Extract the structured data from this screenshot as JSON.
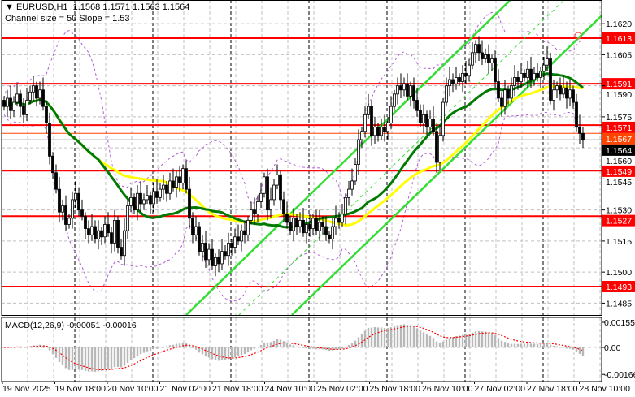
{
  "header": {
    "symbol_line": "EURUSD,H1  1.1568 1.1571 1.1563 1.1564",
    "channel_line": "Channel size = 50 Slope = 1.53",
    "menu_icon": "triangle-down-icon"
  },
  "macd": {
    "title": "MACD(12,26,9) -0.00051 -0.00016",
    "ticks": [
      "0.00155",
      "0.00",
      "-0.00166"
    ],
    "tick_values": [
      0.00155,
      0,
      -0.00166
    ]
  },
  "chart_data": {
    "type": "candlestick",
    "symbol": "EURUSD",
    "timeframe": "H1",
    "ylim": [
      1.1485,
      1.1625
    ],
    "y_ticks": [
      "1.1620",
      "1.1605",
      "1.1590",
      "1.1575",
      "1.1560",
      "1.1545",
      "1.1530",
      "1.1515",
      "1.1500",
      "1.1485"
    ],
    "x_tick_labels": [
      "19 Nov 2025",
      "19 Nov 18:00",
      "20 Nov 10:00",
      "21 Nov 02:00",
      "21 Nov 18:00",
      "24 Nov 10:00",
      "25 Nov 02:00",
      "25 Nov 18:00",
      "26 Nov 10:00",
      "27 Nov 02:00",
      "27 Nov 18:00",
      "28 Nov 10:00"
    ],
    "grid": true,
    "closes": [
      1.158,
      1.1584,
      1.1578,
      1.1582,
      1.1586,
      1.158,
      1.1576,
      1.1583,
      1.1587,
      1.159,
      1.1584,
      1.1588,
      1.158,
      1.1572,
      1.1556,
      1.1548,
      1.154,
      1.1529,
      1.1532,
      1.1523,
      1.1526,
      1.1535,
      1.1538,
      1.153,
      1.1527,
      1.1521,
      1.1518,
      1.1522,
      1.1516,
      1.152,
      1.1517,
      1.1523,
      1.1519,
      1.1514,
      1.1525,
      1.1512,
      1.1508,
      1.152,
      1.1532,
      1.1536,
      1.153,
      1.1538,
      1.1533,
      1.1535,
      1.1537,
      1.1533,
      1.1539,
      1.1536,
      1.154,
      1.1542,
      1.1538,
      1.1544,
      1.1541,
      1.1546,
      1.1543,
      1.155,
      1.154,
      1.1526,
      1.1518,
      1.1522,
      1.151,
      1.1514,
      1.1506,
      1.1511,
      1.1503,
      1.1507,
      1.1504,
      1.151,
      1.1508,
      1.1514,
      1.1512,
      1.1517,
      1.1515,
      1.152,
      1.1518,
      1.1525,
      1.153,
      1.1528,
      1.1534,
      1.1538,
      1.1546,
      1.153,
      1.1535,
      1.1542,
      1.1547,
      1.1535,
      1.1528,
      1.1524,
      1.152,
      1.1526,
      1.1522,
      1.1525,
      1.1519,
      1.1523,
      1.1521,
      1.1526,
      1.152,
      1.1524,
      1.1522,
      1.1518,
      1.1516,
      1.1522,
      1.1526,
      1.1524,
      1.1528,
      1.1536,
      1.154,
      1.1544,
      1.1552,
      1.1564,
      1.1568,
      1.1576,
      1.158,
      1.1566,
      1.157,
      1.1566,
      1.157,
      1.1568,
      1.1572,
      1.158,
      1.1586,
      1.159,
      1.1588,
      1.1591,
      1.1585,
      1.159,
      1.1583,
      1.1578,
      1.1572,
      1.1576,
      1.157,
      1.1574,
      1.1568,
      1.1553,
      1.1566,
      1.1582,
      1.159,
      1.1593,
      1.1591,
      1.1594,
      1.1592,
      1.1596,
      1.1595,
      1.16,
      1.1606,
      1.161,
      1.1606,
      1.1603,
      1.1605,
      1.1601,
      1.1603,
      1.1592,
      1.1584,
      1.158,
      1.1588,
      1.1584,
      1.159,
      1.1594,
      1.1592,
      1.1596,
      1.1594,
      1.1598,
      1.1593,
      1.1596,
      1.1594,
      1.1597,
      1.16,
      1.1603,
      1.1583,
      1.1588,
      1.159,
      1.1586,
      1.1589,
      1.1584,
      1.1588,
      1.1582,
      1.157,
      1.1567,
      1.1564
    ],
    "moving_averages": [
      {
        "period": 50,
        "color": "#ffff00"
      },
      {
        "period": 30,
        "color": "#007a00"
      }
    ],
    "envelope": {
      "period": 20,
      "deviations": 2,
      "color": "#b45cd8"
    },
    "levels": [
      {
        "price": 1.1613,
        "label": "1.1613"
      },
      {
        "price": 1.1591,
        "label": "1.1591"
      },
      {
        "price": 1.1571,
        "label": "1.1571"
      },
      {
        "price": 1.1549,
        "label": "1.1549"
      },
      {
        "price": 1.1527,
        "label": "1.1527"
      },
      {
        "price": 1.1493,
        "label": "1.1493"
      }
    ],
    "ask_line": {
      "price": 1.1567,
      "label": "1.1567",
      "color": "#ff4500"
    },
    "bid_line": {
      "price": 1.1564,
      "label": "1.1564",
      "color": "#000000"
    },
    "channel": {
      "upper": [
        [
          56,
          1.14793
        ],
        [
          148,
          1.16197
        ]
      ],
      "lower": [
        [
          88.5,
          1.14793
        ],
        [
          181,
          1.16197
        ]
      ]
    },
    "colors": {
      "level": "#ff0000",
      "channel": "#33dd33",
      "macd_hist": "#b8b8b8",
      "macd_signal": "#ff0000"
    }
  }
}
